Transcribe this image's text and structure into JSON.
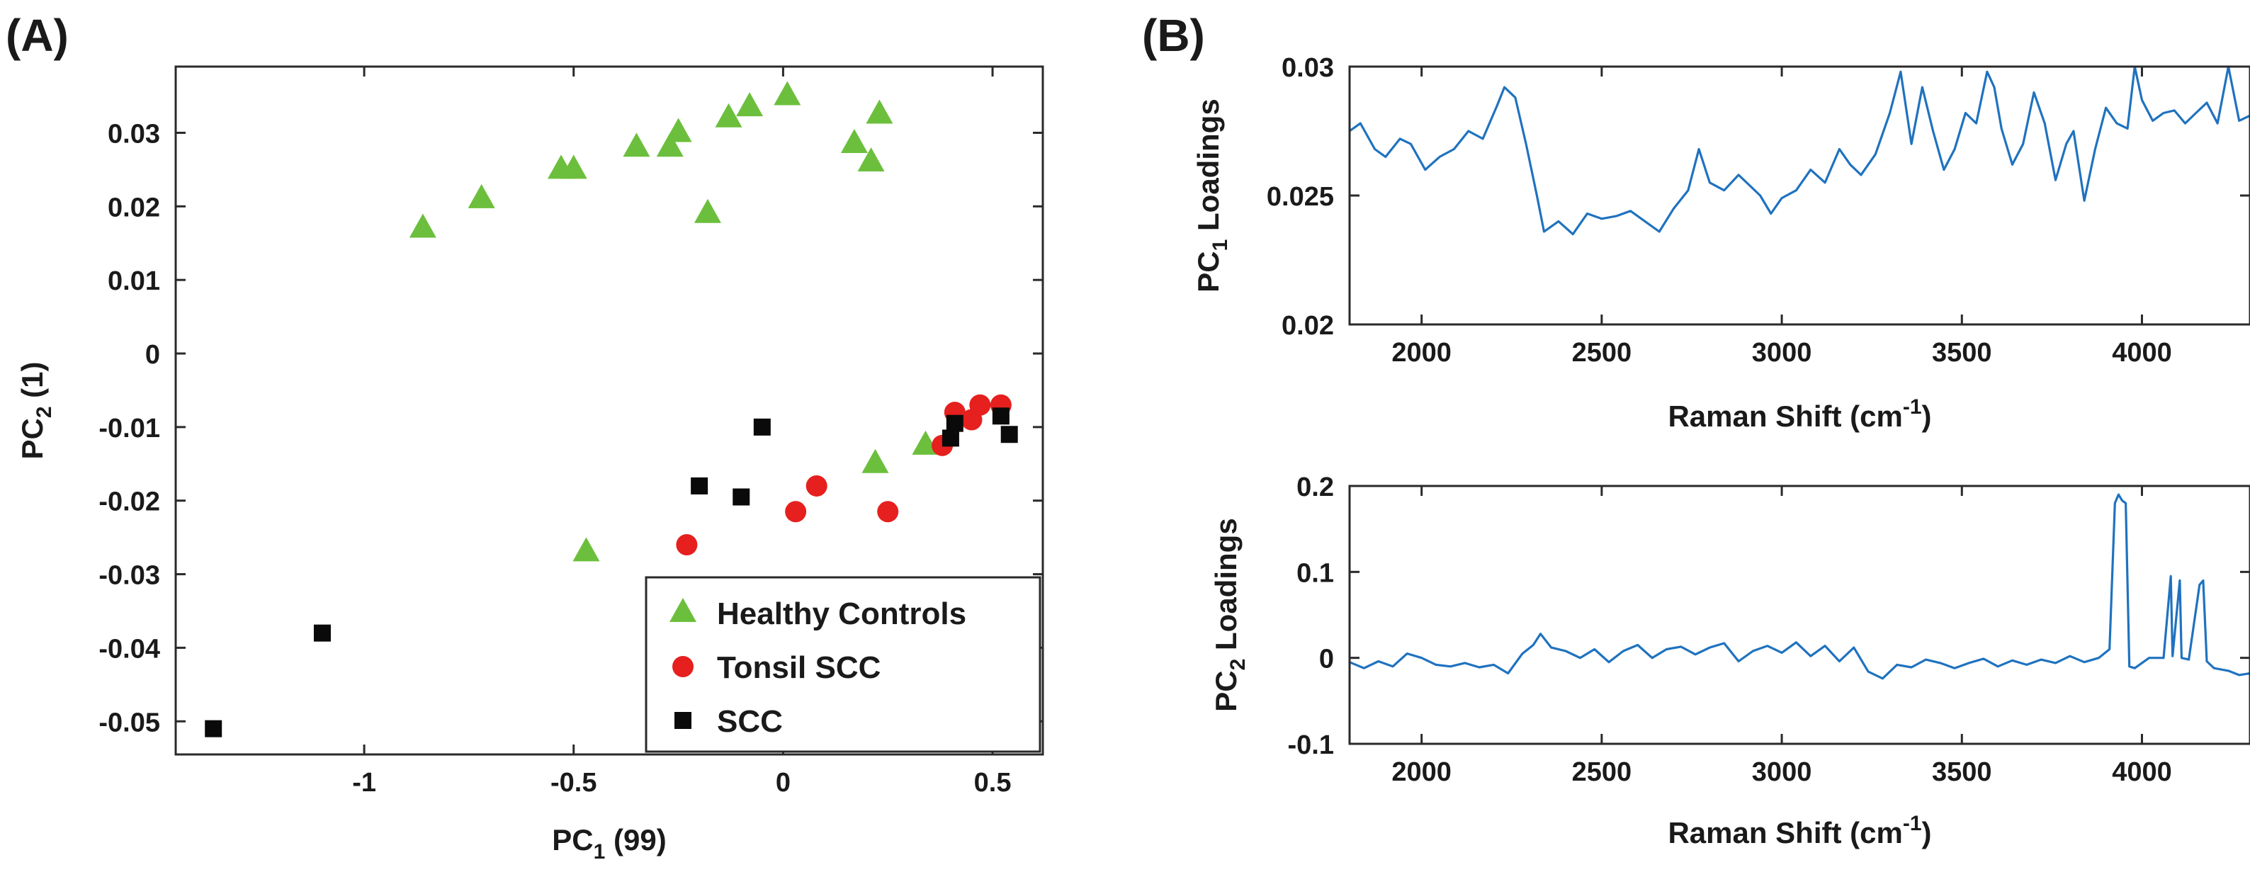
{
  "panels": {
    "a": "(A)",
    "b": "(B)"
  },
  "chart_data": [
    {
      "id": "scatter",
      "type": "scatter",
      "xlabel": {
        "main": "PC",
        "sub": "1",
        "suffix": " (99)"
      },
      "ylabel": {
        "main": "PC",
        "sub": "2",
        "suffix": " (1)"
      },
      "xlim": [
        -1.45,
        0.62
      ],
      "ylim": [
        -0.0545,
        0.039
      ],
      "xticks": [
        -1,
        -0.5,
        0,
        0.5
      ],
      "yticks": [
        -0.05,
        -0.04,
        -0.03,
        -0.02,
        -0.01,
        0,
        0.01,
        0.02,
        0.03
      ],
      "legend_position": "bottom-right",
      "series": [
        {
          "name": "Healthy Controls",
          "marker": "triangle",
          "color": "#6cbf3c",
          "points": [
            [
              -0.86,
              0.017
            ],
            [
              -0.72,
              0.021
            ],
            [
              -0.53,
              0.025
            ],
            [
              -0.5,
              0.025
            ],
            [
              -0.35,
              0.028
            ],
            [
              -0.27,
              0.028
            ],
            [
              -0.25,
              0.03
            ],
            [
              -0.18,
              0.019
            ],
            [
              -0.13,
              0.032
            ],
            [
              -0.08,
              0.0335
            ],
            [
              0.01,
              0.035
            ],
            [
              0.17,
              0.0285
            ],
            [
              0.21,
              0.026
            ],
            [
              0.23,
              0.0325
            ],
            [
              -0.47,
              -0.027
            ],
            [
              0.22,
              -0.015
            ],
            [
              0.34,
              -0.0125
            ]
          ]
        },
        {
          "name": "Tonsil SCC",
          "marker": "circle",
          "color": "#e5201e",
          "points": [
            [
              -0.23,
              -0.026
            ],
            [
              0.03,
              -0.0215
            ],
            [
              0.08,
              -0.018
            ],
            [
              0.25,
              -0.0215
            ],
            [
              0.38,
              -0.0125
            ],
            [
              0.41,
              -0.008
            ],
            [
              0.45,
              -0.009
            ],
            [
              0.47,
              -0.007
            ],
            [
              0.52,
              -0.007
            ]
          ]
        },
        {
          "name": "SCC",
          "marker": "square",
          "color": "#0a0a0a",
          "points": [
            [
              -1.36,
              -0.051
            ],
            [
              -1.1,
              -0.038
            ],
            [
              -0.2,
              -0.018
            ],
            [
              -0.1,
              -0.0195
            ],
            [
              -0.05,
              -0.01
            ],
            [
              0.4,
              -0.0115
            ],
            [
              0.41,
              -0.0095
            ],
            [
              0.52,
              -0.0085
            ],
            [
              0.54,
              -0.011
            ]
          ]
        }
      ]
    },
    {
      "id": "pc1",
      "type": "line",
      "xlabel": {
        "main": "Raman Shift (cm",
        "sup": "-1",
        "suffix": ")"
      },
      "ylabel": {
        "main": "PC",
        "sub": "1",
        "suffix": " Loadings"
      },
      "xlim": [
        1800,
        4300
      ],
      "ylim": [
        0.02,
        0.03
      ],
      "xticks": [
        2000,
        2500,
        3000,
        3500,
        4000
      ],
      "yticks": [
        0.02,
        0.025,
        0.03
      ],
      "color": "#1f72bf",
      "series": [
        {
          "name": "PC1 loadings",
          "x": [
            1800,
            1830,
            1870,
            1900,
            1940,
            1970,
            2010,
            2050,
            2090,
            2130,
            2170,
            2210,
            2230,
            2260,
            2290,
            2320,
            2340,
            2380,
            2420,
            2460,
            2500,
            2540,
            2580,
            2620,
            2660,
            2700,
            2740,
            2770,
            2800,
            2840,
            2880,
            2910,
            2940,
            2970,
            3000,
            3040,
            3080,
            3120,
            3160,
            3190,
            3220,
            3260,
            3300,
            3330,
            3360,
            3390,
            3420,
            3450,
            3480,
            3510,
            3540,
            3570,
            3590,
            3610,
            3640,
            3670,
            3700,
            3730,
            3760,
            3790,
            3810,
            3840,
            3870,
            3900,
            3930,
            3960,
            3980,
            4000,
            4030,
            4060,
            4090,
            4120,
            4150,
            4180,
            4210,
            4240,
            4270,
            4300
          ],
          "y": [
            0.0275,
            0.0278,
            0.0268,
            0.0265,
            0.0272,
            0.027,
            0.026,
            0.0265,
            0.0268,
            0.0275,
            0.0272,
            0.0285,
            0.0292,
            0.0288,
            0.027,
            0.025,
            0.0236,
            0.024,
            0.0235,
            0.0243,
            0.0241,
            0.0242,
            0.0244,
            0.024,
            0.0236,
            0.0245,
            0.0252,
            0.0268,
            0.0255,
            0.0252,
            0.0258,
            0.0254,
            0.025,
            0.0243,
            0.0249,
            0.0252,
            0.026,
            0.0255,
            0.0268,
            0.0262,
            0.0258,
            0.0266,
            0.0282,
            0.0298,
            0.027,
            0.0292,
            0.0275,
            0.026,
            0.0268,
            0.0282,
            0.0278,
            0.0298,
            0.0292,
            0.0276,
            0.0262,
            0.027,
            0.029,
            0.0278,
            0.0256,
            0.027,
            0.0275,
            0.0248,
            0.0268,
            0.0284,
            0.0278,
            0.0276,
            0.03,
            0.0287,
            0.0279,
            0.0282,
            0.0283,
            0.0278,
            0.0282,
            0.0286,
            0.0278,
            0.03,
            0.0279,
            0.0281
          ]
        }
      ]
    },
    {
      "id": "pc2",
      "type": "line",
      "xlabel": {
        "main": "Raman Shift (cm",
        "sup": "-1",
        "suffix": ")"
      },
      "ylabel": {
        "main": "PC",
        "sub": "2",
        "suffix": " Loadings"
      },
      "xlim": [
        1800,
        4300
      ],
      "ylim": [
        -0.1,
        0.2
      ],
      "xticks": [
        2000,
        2500,
        3000,
        3500,
        4000
      ],
      "yticks": [
        -0.1,
        0,
        0.1,
        0.2
      ],
      "color": "#1f72bf",
      "series": [
        {
          "name": "PC2 loadings",
          "x": [
            1800,
            1840,
            1880,
            1920,
            1960,
            2000,
            2040,
            2080,
            2120,
            2160,
            2200,
            2240,
            2280,
            2310,
            2330,
            2360,
            2400,
            2440,
            2480,
            2520,
            2560,
            2600,
            2640,
            2680,
            2720,
            2760,
            2800,
            2840,
            2880,
            2920,
            2960,
            3000,
            3040,
            3080,
            3120,
            3160,
            3200,
            3240,
            3280,
            3320,
            3360,
            3400,
            3440,
            3480,
            3520,
            3560,
            3600,
            3640,
            3680,
            3720,
            3760,
            3800,
            3840,
            3880,
            3910,
            3925,
            3935,
            3945,
            3955,
            3965,
            3980,
            4020,
            4060,
            4080,
            4085,
            4105,
            4110,
            4130,
            4160,
            4170,
            4180,
            4190,
            4200,
            4240,
            4270,
            4300
          ],
          "y": [
            -0.005,
            -0.012,
            -0.004,
            -0.01,
            0.005,
            0.0,
            -0.008,
            -0.01,
            -0.006,
            -0.011,
            -0.008,
            -0.018,
            0.005,
            0.015,
            0.028,
            0.012,
            0.008,
            0.0,
            0.01,
            -0.005,
            0.008,
            0.015,
            0.0,
            0.01,
            0.013,
            0.004,
            0.012,
            0.017,
            -0.004,
            0.008,
            0.014,
            0.006,
            0.018,
            0.002,
            0.014,
            -0.004,
            0.012,
            -0.016,
            -0.024,
            -0.008,
            -0.011,
            -0.002,
            -0.006,
            -0.012,
            -0.006,
            -0.001,
            -0.01,
            -0.003,
            -0.008,
            -0.002,
            -0.006,
            0.002,
            -0.005,
            0.0,
            0.01,
            0.18,
            0.19,
            0.183,
            0.18,
            -0.01,
            -0.012,
            0.0,
            0.0,
            0.095,
            0.002,
            0.09,
            0.0,
            -0.002,
            0.085,
            0.09,
            -0.004,
            -0.008,
            -0.012,
            -0.015,
            -0.02,
            -0.018
          ]
        }
      ]
    }
  ]
}
